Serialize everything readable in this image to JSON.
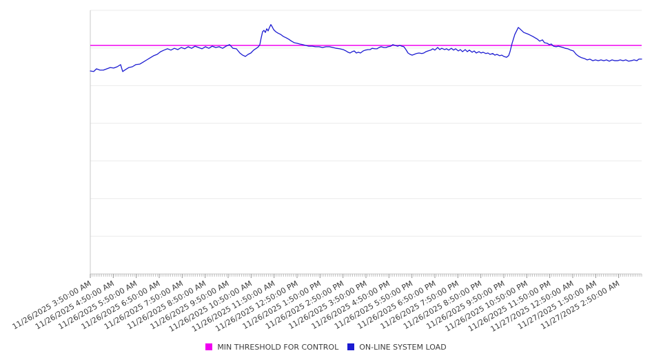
{
  "chart_data": {
    "type": "line",
    "title": "",
    "xlabel": "",
    "ylabel": "",
    "grid": "horizontal-only",
    "y_axis": {
      "tick_labels_visible": false,
      "ylim": [
        0,
        100
      ],
      "gridline_rows": 7
    },
    "x_axis": {
      "label_rotation_deg": -30,
      "minor_tick_count": 288,
      "tick_labels": [
        "11/26/2025 3:50:00 AM",
        "11/26/2025 4:50:00 AM",
        "11/26/2025 5:50:00 AM",
        "11/26/2025 6:50:00 AM",
        "11/26/2025 7:50:00 AM",
        "11/26/2025 8:50:00 AM",
        "11/26/2025 9:50:00 AM",
        "11/26/2025 10:50:00 AM",
        "11/26/2025 11:50:00 AM",
        "11/26/2025 12:50:00 PM",
        "11/26/2025 1:50:00 PM",
        "11/26/2025 2:50:00 PM",
        "11/26/2025 3:50:00 PM",
        "11/26/2025 4:50:00 PM",
        "11/26/2025 5:50:00 PM",
        "11/26/2025 6:50:00 PM",
        "11/26/2025 7:50:00 PM",
        "11/26/2025 8:50:00 PM",
        "11/26/2025 9:50:00 PM",
        "11/26/2025 10:50:00 PM",
        "11/26/2025 11:50:00 PM",
        "11/27/2025 12:50:00 AM",
        "11/27/2025 1:50:00 AM",
        "11/27/2025 2:50:00 AM"
      ]
    },
    "colors": {
      "grid": "#ebebeb",
      "axis": "#c8c8c8",
      "minor_tick": "#a8a8a8",
      "hour_tick": "#8f8f8f",
      "tick_label": "#3c3c3c"
    },
    "legend_position": "bottom-center",
    "series": [
      {
        "name": "MIN THRESHOLD FOR CONTROL",
        "type": "threshold-line",
        "color": "#f000f0",
        "value": 86.7
      },
      {
        "name": "ON-LINE SYSTEM LOAD",
        "type": "line",
        "color": "#1b1bd1",
        "note": "points are [fraction-of-x-span, value]; y scale 0-100 of plot height (source chart shows no y-axis labels)",
        "points": [
          [
            0.0,
            77.0
          ],
          [
            0.0063,
            76.8
          ],
          [
            0.0113,
            77.8
          ],
          [
            0.0175,
            77.3
          ],
          [
            0.0238,
            77.3
          ],
          [
            0.03,
            77.8
          ],
          [
            0.0363,
            78.3
          ],
          [
            0.0425,
            78.1
          ],
          [
            0.0488,
            78.6
          ],
          [
            0.055,
            79.4
          ],
          [
            0.0588,
            76.8
          ],
          [
            0.0638,
            77.5
          ],
          [
            0.07,
            78.3
          ],
          [
            0.0763,
            78.6
          ],
          [
            0.0825,
            79.4
          ],
          [
            0.09,
            79.6
          ],
          [
            0.0963,
            80.4
          ],
          [
            0.1025,
            81.2
          ],
          [
            0.1088,
            82.0
          ],
          [
            0.115,
            82.8
          ],
          [
            0.1213,
            83.3
          ],
          [
            0.1275,
            84.3
          ],
          [
            0.1338,
            84.9
          ],
          [
            0.14,
            85.4
          ],
          [
            0.1463,
            84.9
          ],
          [
            0.1525,
            85.6
          ],
          [
            0.1588,
            85.1
          ],
          [
            0.165,
            85.9
          ],
          [
            0.1713,
            85.4
          ],
          [
            0.1775,
            86.2
          ],
          [
            0.1838,
            85.6
          ],
          [
            0.19,
            86.4
          ],
          [
            0.1963,
            85.9
          ],
          [
            0.2025,
            85.4
          ],
          [
            0.2088,
            86.2
          ],
          [
            0.215,
            85.6
          ],
          [
            0.2213,
            86.4
          ],
          [
            0.2275,
            85.9
          ],
          [
            0.2338,
            86.2
          ],
          [
            0.24,
            85.6
          ],
          [
            0.2463,
            86.4
          ],
          [
            0.2525,
            87.0
          ],
          [
            0.2588,
            85.6
          ],
          [
            0.265,
            85.4
          ],
          [
            0.2713,
            83.8
          ],
          [
            0.2763,
            83.0
          ],
          [
            0.2813,
            82.5
          ],
          [
            0.2863,
            83.3
          ],
          [
            0.2913,
            83.8
          ],
          [
            0.2963,
            84.9
          ],
          [
            0.3013,
            85.6
          ],
          [
            0.305,
            86.2
          ],
          [
            0.3075,
            87.0
          ],
          [
            0.31,
            89.6
          ],
          [
            0.3125,
            91.9
          ],
          [
            0.315,
            92.4
          ],
          [
            0.3175,
            91.6
          ],
          [
            0.32,
            93.0
          ],
          [
            0.3225,
            92.2
          ],
          [
            0.325,
            93.5
          ],
          [
            0.3275,
            94.6
          ],
          [
            0.33,
            93.7
          ],
          [
            0.3325,
            92.7
          ],
          [
            0.3363,
            91.9
          ],
          [
            0.34,
            91.4
          ],
          [
            0.345,
            90.9
          ],
          [
            0.35,
            90.1
          ],
          [
            0.355,
            89.6
          ],
          [
            0.36,
            89.0
          ],
          [
            0.365,
            88.3
          ],
          [
            0.37,
            87.7
          ],
          [
            0.375,
            87.5
          ],
          [
            0.38,
            87.2
          ],
          [
            0.385,
            87.0
          ],
          [
            0.39,
            86.7
          ],
          [
            0.3963,
            86.4
          ],
          [
            0.4025,
            86.4
          ],
          [
            0.4088,
            86.2
          ],
          [
            0.415,
            86.2
          ],
          [
            0.4213,
            85.9
          ],
          [
            0.4275,
            86.2
          ],
          [
            0.4338,
            86.2
          ],
          [
            0.44,
            85.9
          ],
          [
            0.4463,
            85.6
          ],
          [
            0.4525,
            85.4
          ],
          [
            0.4588,
            85.1
          ],
          [
            0.4638,
            84.6
          ],
          [
            0.4675,
            84.1
          ],
          [
            0.4713,
            83.8
          ],
          [
            0.475,
            84.3
          ],
          [
            0.4788,
            84.6
          ],
          [
            0.4825,
            83.8
          ],
          [
            0.4863,
            84.1
          ],
          [
            0.49,
            83.8
          ],
          [
            0.495,
            84.6
          ],
          [
            0.4988,
            84.9
          ],
          [
            0.5038,
            85.1
          ],
          [
            0.5075,
            85.1
          ],
          [
            0.5113,
            85.6
          ],
          [
            0.5163,
            85.4
          ],
          [
            0.52,
            85.4
          ],
          [
            0.5238,
            85.9
          ],
          [
            0.5275,
            86.2
          ],
          [
            0.5325,
            85.9
          ],
          [
            0.5363,
            85.9
          ],
          [
            0.54,
            86.2
          ],
          [
            0.545,
            86.4
          ],
          [
            0.5488,
            87.0
          ],
          [
            0.5525,
            86.7
          ],
          [
            0.5575,
            86.4
          ],
          [
            0.5613,
            86.7
          ],
          [
            0.565,
            86.4
          ],
          [
            0.5688,
            86.2
          ],
          [
            0.5725,
            85.1
          ],
          [
            0.5763,
            83.8
          ],
          [
            0.58,
            83.3
          ],
          [
            0.5838,
            83.0
          ],
          [
            0.5875,
            83.3
          ],
          [
            0.5913,
            83.6
          ],
          [
            0.5963,
            83.8
          ],
          [
            0.6013,
            83.6
          ],
          [
            0.605,
            83.8
          ],
          [
            0.6088,
            84.3
          ],
          [
            0.6125,
            84.6
          ],
          [
            0.6175,
            84.9
          ],
          [
            0.6213,
            85.4
          ],
          [
            0.625,
            84.9
          ],
          [
            0.63,
            85.9
          ],
          [
            0.6338,
            85.1
          ],
          [
            0.6375,
            85.6
          ],
          [
            0.6425,
            85.1
          ],
          [
            0.6463,
            85.4
          ],
          [
            0.65,
            84.9
          ],
          [
            0.655,
            85.6
          ],
          [
            0.6588,
            84.9
          ],
          [
            0.6625,
            85.4
          ],
          [
            0.6675,
            84.6
          ],
          [
            0.6713,
            85.1
          ],
          [
            0.675,
            84.3
          ],
          [
            0.68,
            85.1
          ],
          [
            0.6838,
            84.3
          ],
          [
            0.6875,
            84.9
          ],
          [
            0.6925,
            84.1
          ],
          [
            0.6963,
            84.6
          ],
          [
            0.7,
            83.8
          ],
          [
            0.705,
            84.3
          ],
          [
            0.7088,
            83.8
          ],
          [
            0.7125,
            84.1
          ],
          [
            0.7175,
            83.6
          ],
          [
            0.7213,
            83.8
          ],
          [
            0.725,
            83.3
          ],
          [
            0.73,
            83.6
          ],
          [
            0.7338,
            83.0
          ],
          [
            0.7375,
            83.3
          ],
          [
            0.7425,
            82.8
          ],
          [
            0.7463,
            83.0
          ],
          [
            0.75,
            82.5
          ],
          [
            0.755,
            82.2
          ],
          [
            0.7588,
            82.8
          ],
          [
            0.7613,
            84.3
          ],
          [
            0.765,
            87.5
          ],
          [
            0.77,
            90.9
          ],
          [
            0.7763,
            93.5
          ],
          [
            0.7775,
            93.3
          ],
          [
            0.7863,
            91.6
          ],
          [
            0.795,
            90.9
          ],
          [
            0.8025,
            90.1
          ],
          [
            0.8113,
            89.0
          ],
          [
            0.815,
            88.3
          ],
          [
            0.82,
            88.8
          ],
          [
            0.8238,
            87.7
          ],
          [
            0.8288,
            87.5
          ],
          [
            0.8325,
            87.0
          ],
          [
            0.8363,
            87.2
          ],
          [
            0.84,
            86.4
          ],
          [
            0.845,
            86.2
          ],
          [
            0.8488,
            86.4
          ],
          [
            0.8525,
            86.2
          ],
          [
            0.8575,
            85.9
          ],
          [
            0.8613,
            85.6
          ],
          [
            0.8663,
            85.4
          ],
          [
            0.8713,
            84.9
          ],
          [
            0.8763,
            84.6
          ],
          [
            0.8813,
            83.3
          ],
          [
            0.8863,
            82.5
          ],
          [
            0.8913,
            82.0
          ],
          [
            0.8963,
            81.7
          ],
          [
            0.9013,
            81.2
          ],
          [
            0.9063,
            81.5
          ],
          [
            0.9113,
            80.9
          ],
          [
            0.9163,
            81.2
          ],
          [
            0.9213,
            80.9
          ],
          [
            0.9263,
            81.2
          ],
          [
            0.9313,
            80.9
          ],
          [
            0.9363,
            81.2
          ],
          [
            0.9413,
            80.7
          ],
          [
            0.9463,
            81.2
          ],
          [
            0.9513,
            80.9
          ],
          [
            0.9563,
            80.9
          ],
          [
            0.9613,
            81.2
          ],
          [
            0.9663,
            80.9
          ],
          [
            0.9713,
            81.2
          ],
          [
            0.9763,
            80.7
          ],
          [
            0.9813,
            80.9
          ],
          [
            0.9863,
            81.2
          ],
          [
            0.9913,
            80.9
          ],
          [
            0.995,
            81.5
          ],
          [
            1.0,
            81.5
          ]
        ]
      }
    ]
  }
}
